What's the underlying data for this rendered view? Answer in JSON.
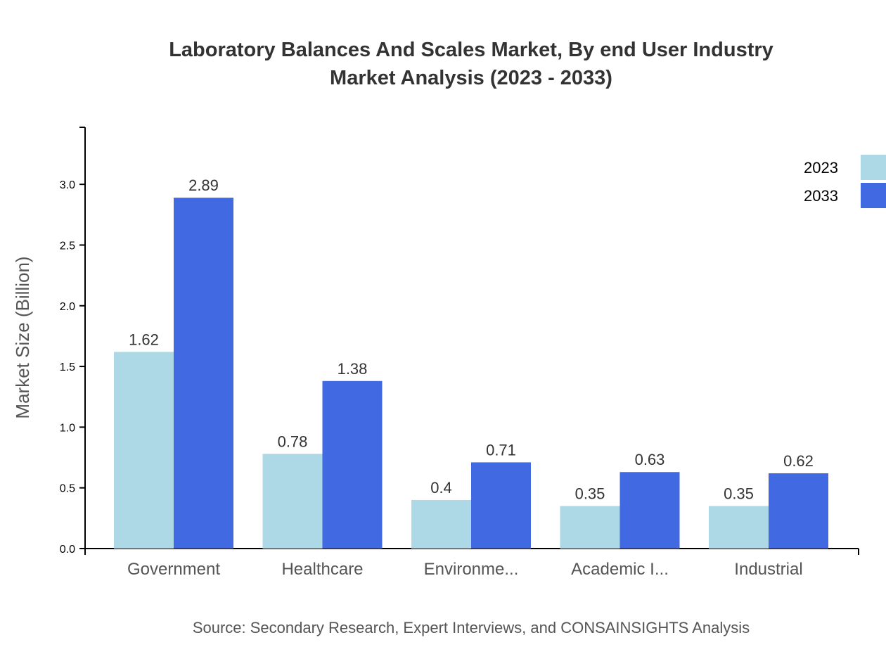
{
  "chart_data": {
    "type": "bar",
    "title": "Laboratory Balances And Scales Market, By end User Industry",
    "subtitle": "Market Analysis (2023 - 2033)",
    "xlabel": "",
    "ylabel": "Market Size (Billion)",
    "ylim": [
      0,
      3.47
    ],
    "yticks": [
      "0.0",
      "0.5",
      "1.0",
      "1.5",
      "2.0",
      "2.5",
      "3.0"
    ],
    "categories": [
      "Government",
      "Healthcare",
      "Environme...",
      "Academic I...",
      "Industrial"
    ],
    "series": [
      {
        "name": "2023",
        "color": "#add8e6",
        "values": [
          1.62,
          0.78,
          0.4,
          0.35,
          0.35
        ]
      },
      {
        "name": "2033",
        "color": "#4169e1",
        "values": [
          2.89,
          1.38,
          0.71,
          0.63,
          0.62
        ]
      }
    ],
    "grid": false,
    "legend": "top-right",
    "source": "Source: Secondary Research, Expert Interviews, and CONSAINSIGHTS Analysis"
  }
}
